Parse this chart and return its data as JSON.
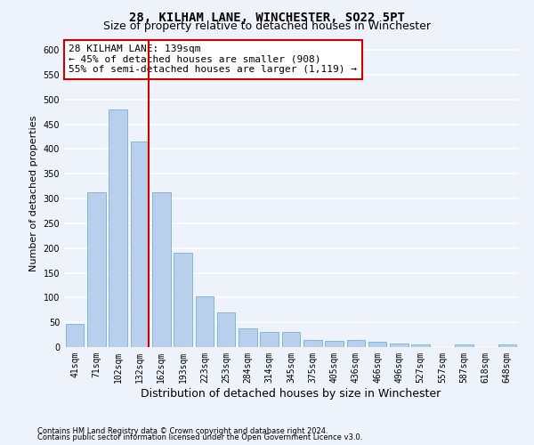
{
  "title": "28, KILHAM LANE, WINCHESTER, SO22 5PT",
  "subtitle": "Size of property relative to detached houses in Winchester",
  "xlabel": "Distribution of detached houses by size in Winchester",
  "ylabel": "Number of detached properties",
  "categories": [
    "41sqm",
    "71sqm",
    "102sqm",
    "132sqm",
    "162sqm",
    "193sqm",
    "223sqm",
    "253sqm",
    "284sqm",
    "314sqm",
    "345sqm",
    "375sqm",
    "405sqm",
    "436sqm",
    "466sqm",
    "496sqm",
    "527sqm",
    "557sqm",
    "587sqm",
    "618sqm",
    "648sqm"
  ],
  "values": [
    46,
    312,
    480,
    415,
    313,
    190,
    103,
    70,
    38,
    30,
    30,
    14,
    13,
    14,
    10,
    8,
    5,
    0,
    5,
    0,
    5
  ],
  "bar_color": "#b8d0eb",
  "bar_edge_color": "#7aaed6",
  "vline_x_index": 3,
  "vline_color": "#cc0000",
  "annotation_line1": "28 KILHAM LANE: 139sqm",
  "annotation_line2": "← 45% of detached houses are smaller (908)",
  "annotation_line3": "55% of semi-detached houses are larger (1,119) →",
  "annotation_box_color": "white",
  "annotation_box_edge_color": "#cc0000",
  "ylim": [
    0,
    620
  ],
  "yticks": [
    0,
    50,
    100,
    150,
    200,
    250,
    300,
    350,
    400,
    450,
    500,
    550,
    600
  ],
  "footer1": "Contains HM Land Registry data © Crown copyright and database right 2024.",
  "footer2": "Contains public sector information licensed under the Open Government Licence v3.0.",
  "background_color": "#eef2fb",
  "grid_color": "white",
  "title_fontsize": 10,
  "subtitle_fontsize": 9,
  "xlabel_fontsize": 9,
  "ylabel_fontsize": 8,
  "tick_fontsize": 7,
  "annotation_fontsize": 8,
  "footer_fontsize": 6
}
